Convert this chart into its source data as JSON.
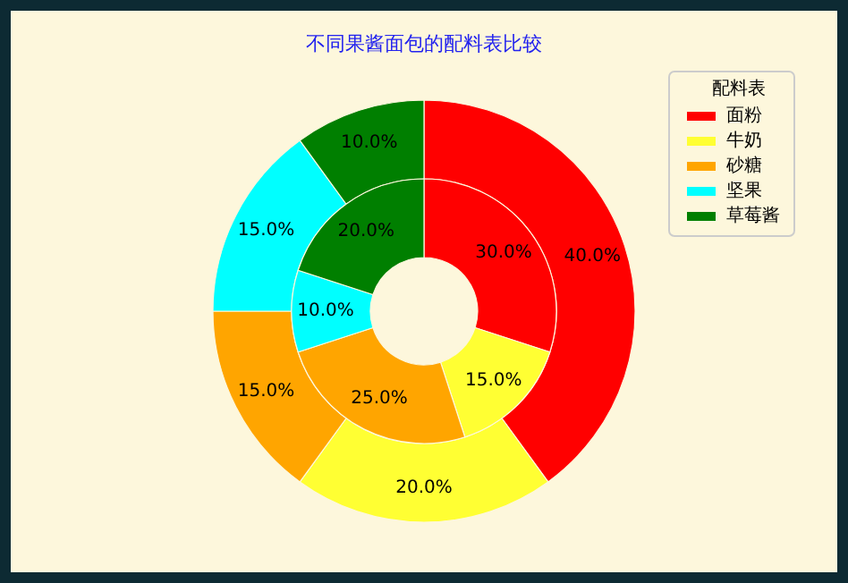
{
  "chart_data": {
    "type": "donut",
    "title": "不同果酱面包的配料表比较",
    "legend_title": "配料表",
    "legend": "top right",
    "categories": [
      "面粉",
      "牛奶",
      "砂糖",
      "坚果",
      "草莓酱"
    ],
    "colors": [
      "#ff0000",
      "#ffff33",
      "#ffa500",
      "#00ffff",
      "#007f00"
    ],
    "series": [
      {
        "values": [
          40,
          20,
          15,
          15,
          10
        ],
        "value_labels": [
          "40.0%",
          "20.0%",
          "15.0%",
          "15.0%",
          "10.0%"
        ]
      },
      {
        "values": [
          30,
          15,
          25,
          10,
          20
        ],
        "value_labels": [
          "30.0%",
          "15.0%",
          "25.0%",
          "10.0%",
          "20.0%"
        ]
      }
    ]
  }
}
